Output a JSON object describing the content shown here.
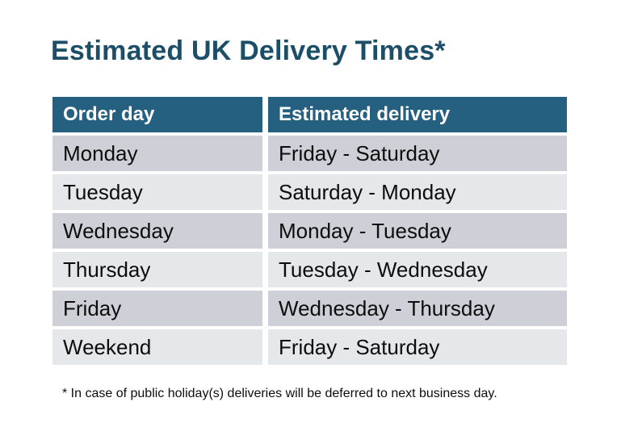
{
  "title": "Estimated UK Delivery Times*",
  "table": {
    "headers": [
      "Order day",
      "Estimated delivery"
    ],
    "rows": [
      {
        "order_day": "Monday",
        "estimated_delivery": "Friday - Saturday"
      },
      {
        "order_day": "Tuesday",
        "estimated_delivery": "Saturday - Monday"
      },
      {
        "order_day": "Wednesday",
        "estimated_delivery": "Monday - Tuesday"
      },
      {
        "order_day": "Thursday",
        "estimated_delivery": "Tuesday - Wednesday"
      },
      {
        "order_day": "Friday",
        "estimated_delivery": "Wednesday - Thursday"
      },
      {
        "order_day": "Weekend",
        "estimated_delivery": "Friday - Saturday"
      }
    ]
  },
  "footnote": "* In case of public holiday(s) deliveries will be deferred to next business day.",
  "colors": {
    "background": "#FFFFFF",
    "title_text": "#1D4E68",
    "header_bg": "#266080",
    "header_text": "#FFFFFF",
    "row_dark": "#CDD0D7",
    "row_light": "#E5E8EB",
    "body_text": "#0D0D0D"
  }
}
